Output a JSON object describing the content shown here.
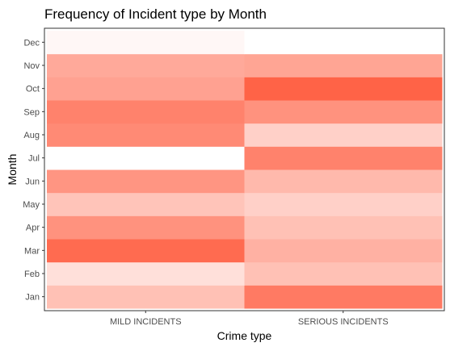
{
  "chart_data": {
    "type": "heatmap",
    "title": "Frequency of Incident type by Month",
    "xlabel": "Crime type",
    "ylabel": "Month",
    "x_categories": [
      "MILD INCIDENTS",
      "SERIOUS INCIDENTS"
    ],
    "y_categories": [
      "Jan",
      "Feb",
      "Mar",
      "Apr",
      "May",
      "Jun",
      "Jul",
      "Aug",
      "Sep",
      "Oct",
      "Nov",
      "Dec"
    ],
    "color_scale": {
      "low": "#ffffff",
      "high": "#ff6347"
    },
    "grid": false,
    "legend": "none",
    "intensity": [
      [
        0.4,
        0.85
      ],
      [
        0.2,
        0.4
      ],
      [
        0.95,
        0.5
      ],
      [
        0.7,
        0.4
      ],
      [
        0.38,
        0.3
      ],
      [
        0.68,
        0.45
      ],
      [
        0.0,
        0.8
      ],
      [
        0.75,
        0.3
      ],
      [
        0.8,
        0.7
      ],
      [
        0.6,
        1.0
      ],
      [
        0.55,
        0.58
      ],
      [
        0.05,
        0.0
      ]
    ]
  }
}
